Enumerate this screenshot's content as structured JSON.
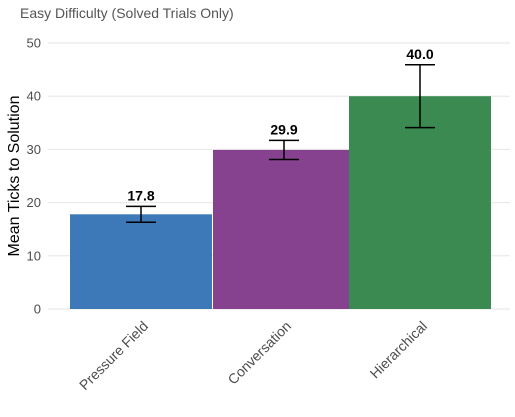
{
  "chart_data": {
    "type": "bar",
    "subtitle": "Easy Difficulty (Solved Trials Only)",
    "ylabel": "Mean Ticks to Solution",
    "xlabel": "",
    "ylim": [
      0,
      50
    ],
    "yticks": [
      0,
      10,
      20,
      30,
      40,
      50
    ],
    "grid": true,
    "categories": [
      "Pressure Field",
      "Conversation",
      "Hierarchical"
    ],
    "values": [
      17.8,
      29.9,
      40.0
    ],
    "value_labels": [
      "17.8",
      "29.9",
      "40.0"
    ],
    "error_low": [
      16.3,
      28.1,
      34.1
    ],
    "error_high": [
      19.3,
      31.7,
      45.9
    ],
    "colors": [
      "#3d78b8",
      "#87428f",
      "#3a8a51"
    ]
  }
}
